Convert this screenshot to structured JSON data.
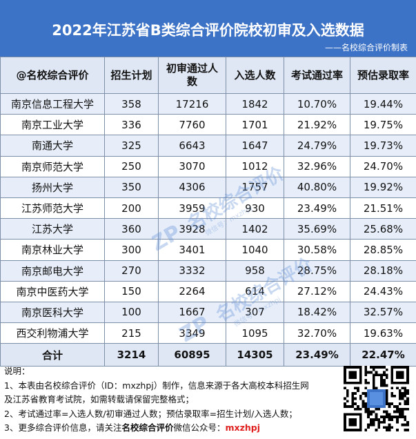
{
  "header": {
    "title": "2022年江苏省B类综合评价院校初审及入选数据",
    "subtitle": "——名校综合评价制表"
  },
  "table": {
    "columns": [
      "@名校综合评价",
      "招生计划",
      "初审通过人数",
      "入选人数",
      "考试通过率",
      "预估录取率"
    ],
    "rows": [
      [
        "南京信息工程大学",
        "358",
        "17216",
        "1842",
        "10.70%",
        "19.44%"
      ],
      [
        "南京工业大学",
        "336",
        "7760",
        "1701",
        "21.92%",
        "19.75%"
      ],
      [
        "南通大学",
        "325",
        "6643",
        "1647",
        "24.79%",
        "19.73%"
      ],
      [
        "南京师范大学",
        "250",
        "3070",
        "1012",
        "32.96%",
        "24.70%"
      ],
      [
        "扬州大学",
        "350",
        "4306",
        "1757",
        "40.80%",
        "19.92%"
      ],
      [
        "江苏师范大学",
        "200",
        "3959",
        "930",
        "23.49%",
        "21.51%"
      ],
      [
        "江苏大学",
        "360",
        "3928",
        "1402",
        "35.69%",
        "25.68%"
      ],
      [
        "南京林业大学",
        "300",
        "3401",
        "1040",
        "30.58%",
        "28.85%"
      ],
      [
        "南京邮电大学",
        "270",
        "3332",
        "958",
        "28.75%",
        "28.18%"
      ],
      [
        "南京中医药大学",
        "150",
        "2264",
        "614",
        "27.12%",
        "24.43%"
      ],
      [
        "南京医科大学",
        "100",
        "1667",
        "307",
        "18.42%",
        "32.57%"
      ],
      [
        "西交利物浦大学",
        "215",
        "3349",
        "1095",
        "32.70%",
        "19.63%"
      ]
    ],
    "total": [
      "合计",
      "3214",
      "60895",
      "14305",
      "23.49%",
      "22.47%"
    ]
  },
  "notes": {
    "heading": "说明：",
    "line1": "1、本表由名校综合评价（ID：mxzhpj）制作，信息来源于各大高校本科招生网",
    "line2": "及江苏省教育考试院，如需转载请保留完整格式；",
    "line3": "2、考试通过率=入选人数/初审通过人数；预估录取率=招生计划/入选人数；",
    "line4_prefix": "3、更多综合评价信息，请关注",
    "line4_bold": "名校综合评价",
    "line4_mid": "微信公众号：",
    "line4_highlight": "mxzhpj"
  },
  "watermark": {
    "text": "名校综合评价",
    "sub": "微信号：mxzhpj",
    "logo": "ZP"
  },
  "colors": {
    "header_bg": "#3d73c6",
    "row_alt": "#e7eef9",
    "highlight": "#e01f1f"
  }
}
